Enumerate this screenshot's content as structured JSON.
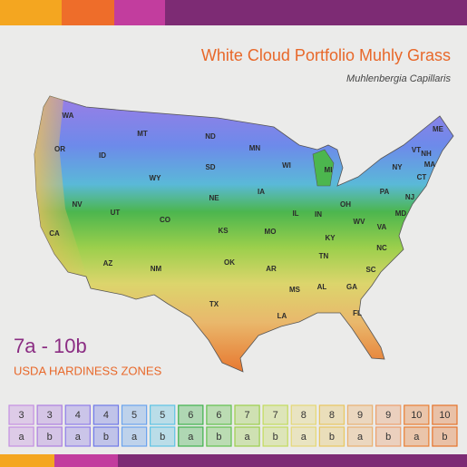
{
  "header": {
    "title": "White Cloud Portfolio Muhly Grass",
    "subtitle": "Muhlenbergia Capillaris"
  },
  "map": {
    "state_labels": [
      "WA",
      "OR",
      "CA",
      "NV",
      "ID",
      "MT",
      "WY",
      "UT",
      "AZ",
      "CO",
      "NM",
      "ND",
      "SD",
      "NE",
      "KS",
      "OK",
      "TX",
      "MN",
      "IA",
      "MO",
      "AR",
      "LA",
      "WI",
      "IL",
      "MI",
      "IN",
      "OH",
      "KY",
      "TN",
      "MS",
      "AL",
      "GA",
      "FL",
      "SC",
      "NC",
      "VA",
      "WV",
      "PA",
      "NY",
      "VT",
      "NH",
      "ME",
      "MA",
      "CT",
      "NJ",
      "MD"
    ]
  },
  "zone_range": "7a - 10b",
  "zone_caption": "USDA HARDINESS ZONES",
  "legend": {
    "zones": [
      {
        "number": "3",
        "letter": "a",
        "color": "#c48fe2"
      },
      {
        "number": "3",
        "letter": "b",
        "color": "#ad7fe0"
      },
      {
        "number": "4",
        "letter": "a",
        "color": "#8f7de9"
      },
      {
        "number": "4",
        "letter": "b",
        "color": "#6f78e8"
      },
      {
        "number": "5",
        "letter": "a",
        "color": "#6aa3ee"
      },
      {
        "number": "5",
        "letter": "b",
        "color": "#5ec3e4"
      },
      {
        "number": "6",
        "letter": "a",
        "color": "#3fb24d"
      },
      {
        "number": "6",
        "letter": "b",
        "color": "#62c04e"
      },
      {
        "number": "7",
        "letter": "a",
        "color": "#9ccf4c"
      },
      {
        "number": "7",
        "letter": "b",
        "color": "#c3db5e"
      },
      {
        "number": "8",
        "letter": "a",
        "color": "#e5d877"
      },
      {
        "number": "8",
        "letter": "b",
        "color": "#e8c660"
      },
      {
        "number": "9",
        "letter": "a",
        "color": "#eab171"
      },
      {
        "number": "9",
        "letter": "b",
        "color": "#ec9f6c"
      },
      {
        "number": "10",
        "letter": "a",
        "color": "#e97f34"
      },
      {
        "number": "10",
        "letter": "b",
        "color": "#e6732a"
      }
    ]
  }
}
